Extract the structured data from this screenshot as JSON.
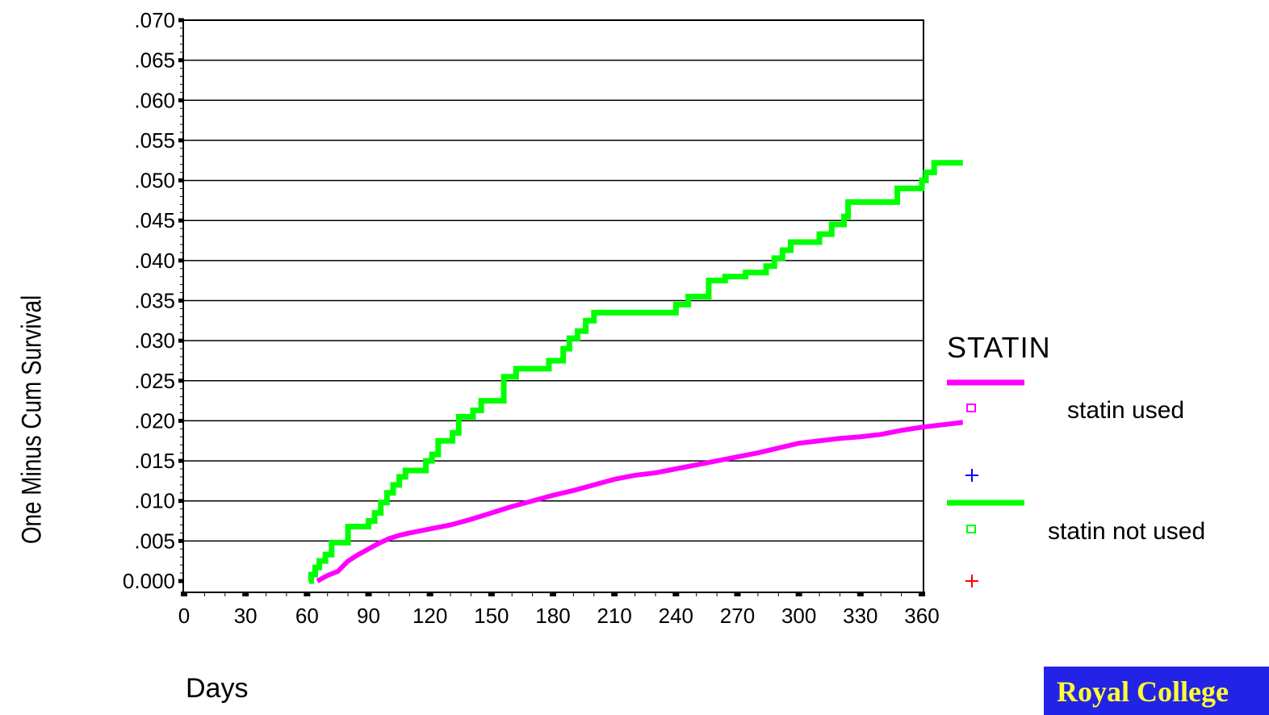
{
  "chart_data": {
    "type": "line",
    "legend_title": "STATIN",
    "xlabel": "Days",
    "ylabel": "One Minus Cum Survival",
    "xlim": [
      0,
      360
    ],
    "ylim": [
      -0.002,
      0.07
    ],
    "x_ticks": [
      0,
      30,
      60,
      90,
      120,
      150,
      180,
      210,
      240,
      270,
      300,
      330,
      360
    ],
    "x_tick_labels": [
      "0",
      "30",
      "60",
      "90",
      "120",
      "150",
      "180",
      "210",
      "240",
      "270",
      "300",
      "330",
      "360"
    ],
    "y_ticks": [
      0.0,
      0.005,
      0.01,
      0.015,
      0.02,
      0.025,
      0.03,
      0.035,
      0.04,
      0.045,
      0.05,
      0.055,
      0.06,
      0.065,
      0.07
    ],
    "y_tick_labels": [
      "0.000",
      ".005",
      ".010",
      ".015",
      ".020",
      ".025",
      ".030",
      ".035",
      ".040",
      ".045",
      ".050",
      ".055",
      ".060",
      ".065",
      ".070"
    ],
    "grid": true,
    "legend_position": "right",
    "series": [
      {
        "name": "statin used",
        "color": "#ff00ff",
        "marker": "square-open",
        "censor_color": "#0000ff",
        "x": [
          65,
          70,
          75,
          80,
          85,
          90,
          95,
          100,
          105,
          110,
          120,
          130,
          140,
          150,
          160,
          170,
          180,
          190,
          200,
          210,
          220,
          230,
          240,
          250,
          260,
          270,
          280,
          290,
          300,
          310,
          320,
          330,
          340,
          350,
          360,
          380
        ],
        "y": [
          0.0,
          0.0007,
          0.0012,
          0.0025,
          0.0033,
          0.004,
          0.0047,
          0.0053,
          0.0057,
          0.006,
          0.0065,
          0.007,
          0.0077,
          0.0085,
          0.0093,
          0.01,
          0.0107,
          0.0113,
          0.012,
          0.0127,
          0.0132,
          0.0135,
          0.014,
          0.0145,
          0.015,
          0.0155,
          0.016,
          0.0166,
          0.0172,
          0.0175,
          0.0178,
          0.018,
          0.0183,
          0.0188,
          0.0192,
          0.0198
        ]
      },
      {
        "name": "statin not used",
        "color": "#00ff00",
        "marker": "square-open",
        "censor_color": "#ff0000",
        "x": [
          61,
          62,
          64,
          66,
          69,
          72,
          76,
          80,
          87,
          90,
          93,
          96,
          99,
          102,
          105,
          108,
          112,
          118,
          121,
          124,
          126,
          131,
          134,
          139,
          141,
          145,
          148,
          156,
          157,
          162,
          164,
          178,
          181,
          185,
          188,
          192,
          196,
          200,
          204,
          236,
          240,
          244,
          246,
          250,
          256,
          258,
          264,
          272,
          274,
          280,
          284,
          288,
          292,
          296,
          302,
          310,
          312,
          316,
          322,
          324,
          346,
          348,
          356,
          360,
          362,
          366,
          370,
          380
        ],
        "y": [
          0.0,
          0.0008,
          0.0017,
          0.0025,
          0.0033,
          0.0048,
          0.0048,
          0.0068,
          0.0068,
          0.0075,
          0.0085,
          0.0098,
          0.011,
          0.012,
          0.013,
          0.0138,
          0.0138,
          0.015,
          0.0158,
          0.0175,
          0.0175,
          0.0185,
          0.0205,
          0.0205,
          0.0213,
          0.0225,
          0.0225,
          0.0255,
          0.0255,
          0.0265,
          0.0265,
          0.0275,
          0.0275,
          0.029,
          0.0303,
          0.0312,
          0.0325,
          0.0335,
          0.0335,
          0.0335,
          0.0345,
          0.0345,
          0.0355,
          0.0355,
          0.0375,
          0.0375,
          0.038,
          0.038,
          0.0385,
          0.0385,
          0.0393,
          0.0403,
          0.0413,
          0.0423,
          0.0423,
          0.0433,
          0.0433,
          0.0445,
          0.0455,
          0.0473,
          0.0473,
          0.049,
          0.049,
          0.05,
          0.051,
          0.0522,
          0.0522,
          0.0522
        ]
      }
    ]
  },
  "footer": {
    "text": "Royal College"
  }
}
